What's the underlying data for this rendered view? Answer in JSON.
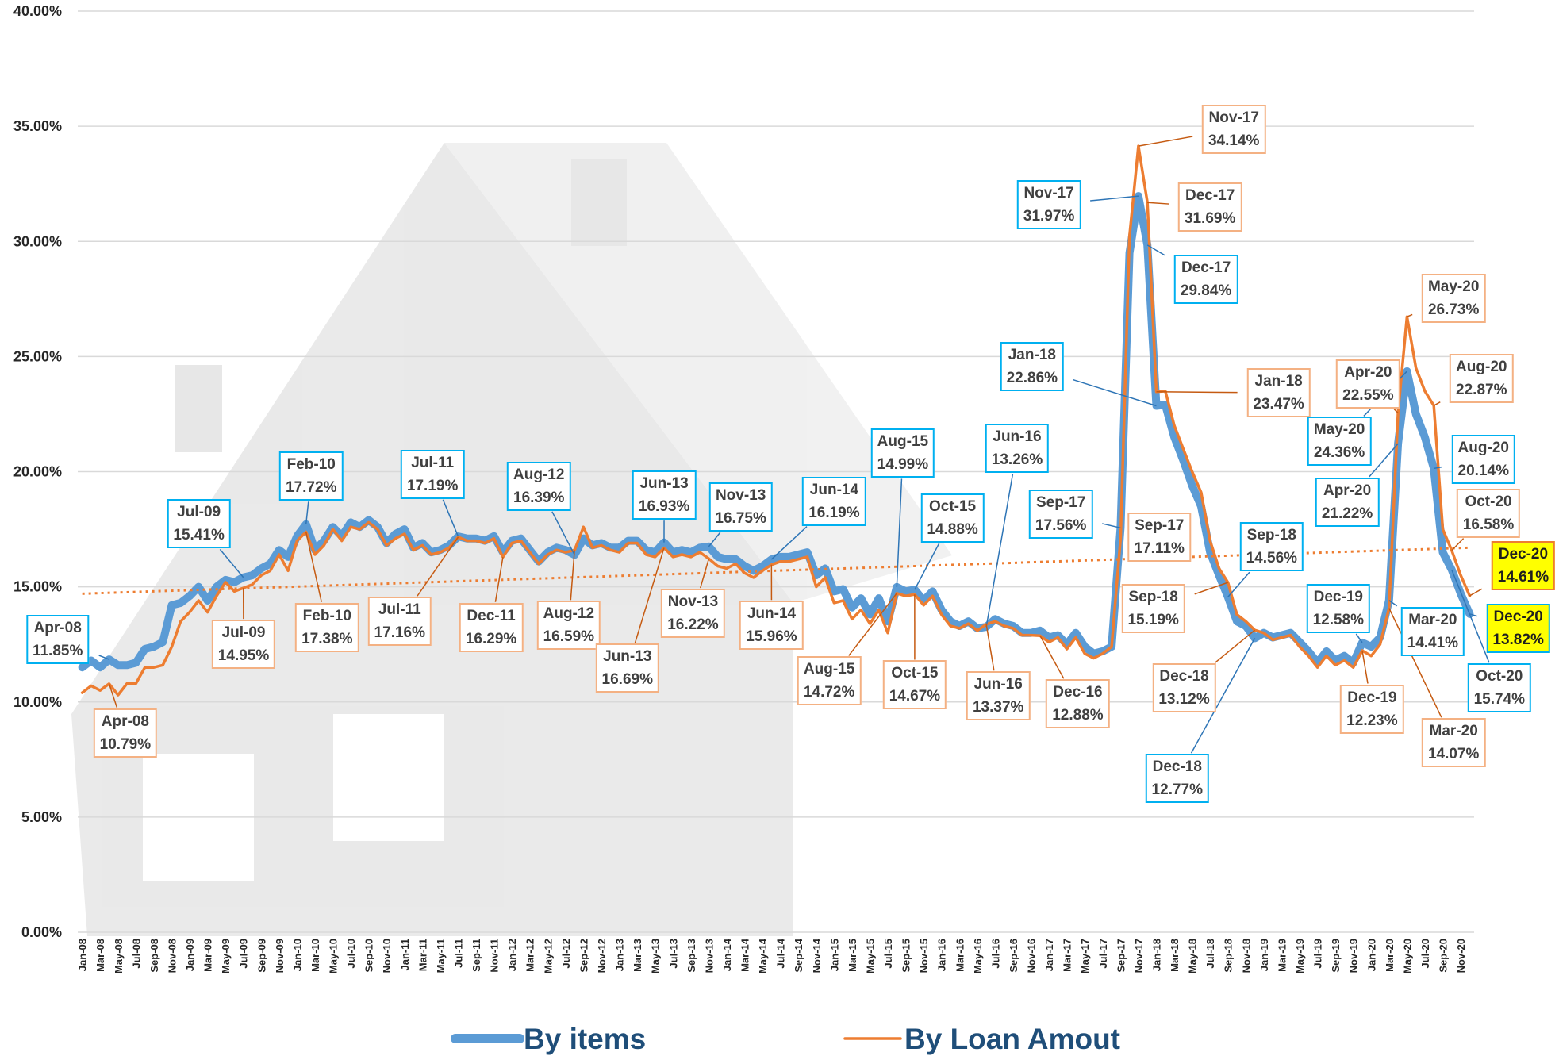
{
  "chart_data": {
    "type": "line",
    "categories": [
      "Jan-08",
      null,
      "Mar-08",
      null,
      "May-08",
      null,
      "Jul-08",
      null,
      "Sep-08",
      null,
      "Nov-08",
      null,
      "Jan-09",
      null,
      "Mar-09",
      null,
      "May-09",
      null,
      "Jul-09",
      null,
      "Sep-09",
      null,
      "Nov-09",
      null,
      "Jan-10",
      null,
      "Mar-10",
      null,
      "May-10",
      null,
      "Jul-10",
      null,
      "Sep-10",
      null,
      "Nov-10",
      null,
      "Jan-11",
      null,
      "Mar-11",
      null,
      "May-11",
      null,
      "Jul-11",
      null,
      "Sep-11",
      null,
      "Nov-11",
      null,
      "Jan-12",
      null,
      "Mar-12",
      null,
      "May-12",
      null,
      "Jul-12",
      null,
      "Sep-12",
      null,
      "Nov-12",
      null,
      "Jan-13",
      null,
      "Mar-13",
      null,
      "May-13",
      null,
      "Jul-13",
      null,
      "Sep-13",
      null,
      "Nov-13",
      null,
      "Jan-14",
      null,
      "Mar-14",
      null,
      "May-14",
      null,
      "Jul-14",
      null,
      "Sep-14",
      null,
      "Nov-14",
      null,
      "Jan-15",
      null,
      "Mar-15",
      null,
      "May-15",
      null,
      "Jul-15",
      null,
      "Sep-15",
      null,
      "Nov-15",
      null,
      "Jan-16",
      null,
      "Mar-16",
      null,
      "May-16",
      null,
      "Jul-16",
      null,
      "Sep-16",
      null,
      "Nov-16",
      null,
      "Jan-17",
      null,
      "Mar-17",
      null,
      "May-17",
      null,
      "Jul-17",
      null,
      "Sep-17",
      null,
      "Nov-17",
      null,
      "Jan-18",
      null,
      "Mar-18",
      null,
      "May-18",
      null,
      "Jul-18",
      null,
      "Sep-18",
      null,
      "Nov-18",
      null,
      "Jan-19",
      null,
      "Mar-19",
      null,
      "May-19",
      null,
      "Jul-19",
      null,
      "Sep-19",
      null,
      "Nov-19",
      null,
      "Jan-20",
      null,
      "Mar-20",
      null,
      "May-20",
      null,
      "Jul-20",
      null,
      "Sep-20",
      null,
      "Nov-20",
      null
    ],
    "series": [
      {
        "name": "By items",
        "color": "#5b9bd5",
        "values": [
          11.5,
          11.8,
          11.5,
          11.85,
          11.6,
          11.6,
          11.7,
          12.3,
          12.4,
          12.6,
          14.2,
          14.3,
          14.6,
          15.0,
          14.4,
          15.0,
          15.3,
          15.2,
          15.41,
          15.5,
          15.8,
          16.0,
          16.6,
          16.3,
          17.2,
          17.72,
          16.6,
          17.0,
          17.6,
          17.2,
          17.8,
          17.6,
          17.9,
          17.6,
          16.9,
          17.3,
          17.5,
          16.7,
          16.9,
          16.5,
          16.6,
          16.8,
          17.19,
          17.1,
          17.1,
          17.0,
          17.2,
          16.5,
          17.0,
          17.1,
          16.6,
          16.1,
          16.5,
          16.7,
          16.6,
          16.39,
          17.1,
          16.8,
          16.9,
          16.7,
          16.7,
          17.0,
          17.0,
          16.6,
          16.5,
          16.93,
          16.5,
          16.6,
          16.5,
          16.7,
          16.75,
          16.3,
          16.2,
          16.2,
          15.9,
          15.7,
          15.9,
          16.19,
          16.3,
          16.3,
          16.4,
          16.5,
          15.5,
          15.8,
          14.8,
          14.9,
          14.1,
          14.5,
          13.8,
          14.5,
          13.5,
          14.99,
          14.8,
          14.88,
          14.4,
          14.8,
          14.0,
          13.5,
          13.3,
          13.5,
          13.2,
          13.26,
          13.6,
          13.4,
          13.3,
          13.0,
          13.0,
          13.1,
          12.8,
          12.9,
          12.5,
          13.0,
          12.4,
          12.1,
          12.2,
          12.4,
          17.56,
          29.5,
          31.97,
          29.84,
          22.86,
          22.9,
          21.5,
          20.5,
          19.4,
          18.5,
          16.5,
          15.5,
          14.56,
          13.5,
          13.3,
          12.77,
          13.0,
          12.8,
          12.9,
          13.0,
          12.6,
          12.2,
          11.7,
          12.2,
          11.8,
          12.0,
          11.7,
          12.58,
          12.4,
          12.8,
          14.41,
          21.22,
          24.36,
          22.5,
          21.5,
          20.14,
          16.5,
          15.74,
          14.7,
          13.82
        ],
        "value_labels": [
          null,
          null,
          null,
          "Apr-08\n11.85%",
          null,
          null,
          null,
          null,
          null,
          null,
          null,
          null,
          null,
          null,
          null,
          null,
          null,
          null,
          "Jul-09\n15.41%",
          null,
          null,
          null,
          null,
          null,
          null,
          "Feb-10\n17.72%",
          null,
          null,
          null,
          null,
          null,
          null,
          null,
          null,
          null,
          null,
          null,
          null,
          null,
          null,
          null,
          null,
          "Jul-11\n17.19%",
          null,
          null,
          null,
          null,
          null,
          null,
          null,
          null,
          null,
          null,
          null,
          null,
          "Aug-12\n16.39%",
          null,
          null,
          null,
          null,
          null,
          null,
          null,
          null,
          null,
          "Jun-13\n16.93%",
          null,
          null,
          null,
          null,
          "Nov-13\n16.75%",
          null,
          null,
          null,
          null,
          null,
          null,
          "Jun-14\n16.19%",
          null,
          null,
          null,
          null,
          null,
          null,
          null,
          null,
          null,
          null,
          null,
          null,
          null,
          "Aug-15\n14.99%",
          null,
          "Oct-15\n14.88%",
          null,
          null,
          null,
          null,
          null,
          null,
          null,
          "Jun-16\n13.26%",
          null,
          null,
          null,
          null,
          null,
          null,
          null,
          null,
          null,
          null,
          null,
          null,
          null,
          null,
          "Sep-17\n17.56%",
          null,
          "Nov-17\n31.97%",
          "Dec-17\n29.84%",
          "Jan-18\n22.86%",
          null,
          null,
          null,
          null,
          null,
          null,
          null,
          "Sep-18\n14.56%",
          null,
          null,
          "Dec-18\n12.77%",
          null,
          null,
          null,
          null,
          null,
          null,
          null,
          null,
          null,
          null,
          null,
          "Dec-19\n12.58%",
          null,
          null,
          "Mar-20\n14.41%",
          "Apr-20\n21.22%",
          "May-20\n24.36%",
          null,
          null,
          "Aug-20\n20.14%",
          null,
          "Oct-20\n15.74%",
          null,
          "Dec-20\n13.82%"
        ]
      },
      {
        "name": "By Loan Amout",
        "color": "#ed7d31",
        "values": [
          10.4,
          10.7,
          10.5,
          10.79,
          10.3,
          10.8,
          10.8,
          11.5,
          11.5,
          11.6,
          12.4,
          13.5,
          13.9,
          14.4,
          13.9,
          14.6,
          15.2,
          14.8,
          14.95,
          15.1,
          15.5,
          15.7,
          16.4,
          15.7,
          17.0,
          17.38,
          16.4,
          16.8,
          17.5,
          17.0,
          17.6,
          17.5,
          17.8,
          17.5,
          16.8,
          17.1,
          17.3,
          16.6,
          16.8,
          16.4,
          16.5,
          16.7,
          17.16,
          17.0,
          17.0,
          16.9,
          17.1,
          16.29,
          16.9,
          17.0,
          16.5,
          16.0,
          16.4,
          16.6,
          16.5,
          16.59,
          17.6,
          16.7,
          16.8,
          16.6,
          16.5,
          16.9,
          16.9,
          16.4,
          16.3,
          16.69,
          16.3,
          16.4,
          16.3,
          16.5,
          16.22,
          15.9,
          15.8,
          16.0,
          15.6,
          15.4,
          15.7,
          15.96,
          16.1,
          16.1,
          16.2,
          16.3,
          15.0,
          15.4,
          14.3,
          14.4,
          13.6,
          14.0,
          13.4,
          14.0,
          13.0,
          14.72,
          14.6,
          14.67,
          14.2,
          14.6,
          13.8,
          13.3,
          13.2,
          13.4,
          13.1,
          13.37,
          13.5,
          13.3,
          13.2,
          12.9,
          12.9,
          12.88,
          12.6,
          12.8,
          12.3,
          12.8,
          12.1,
          11.9,
          12.1,
          12.4,
          17.11,
          30.2,
          34.14,
          31.69,
          23.47,
          23.5,
          22.0,
          21.0,
          20.0,
          19.1,
          17.0,
          15.8,
          15.19,
          13.8,
          13.5,
          13.12,
          13.0,
          12.7,
          12.8,
          12.9,
          12.4,
          12.0,
          11.5,
          12.0,
          11.6,
          11.8,
          11.5,
          12.23,
          12.0,
          12.5,
          14.07,
          22.55,
          26.73,
          24.5,
          23.5,
          22.87,
          17.5,
          16.58,
          15.5,
          14.61
        ],
        "value_labels": [
          null,
          null,
          null,
          "Apr-08\n10.79%",
          null,
          null,
          null,
          null,
          null,
          null,
          null,
          null,
          null,
          null,
          null,
          null,
          null,
          null,
          "Jul-09\n14.95%",
          null,
          null,
          null,
          null,
          null,
          null,
          "Feb-10\n17.38%",
          null,
          null,
          null,
          null,
          null,
          null,
          null,
          null,
          null,
          null,
          null,
          null,
          null,
          null,
          null,
          null,
          "Jul-11\n17.16%",
          null,
          null,
          null,
          null,
          "Dec-11\n16.29%",
          null,
          null,
          null,
          null,
          null,
          null,
          null,
          "Aug-12\n16.59%",
          null,
          null,
          null,
          null,
          null,
          null,
          null,
          null,
          null,
          "Jun-13\n16.69%",
          null,
          null,
          null,
          null,
          "Nov-13\n16.22%",
          null,
          null,
          null,
          null,
          null,
          null,
          "Jun-14\n15.96%",
          null,
          null,
          null,
          null,
          null,
          null,
          null,
          null,
          null,
          null,
          null,
          null,
          null,
          "Aug-15\n14.72%",
          null,
          "Oct-15\n14.67%",
          null,
          null,
          null,
          null,
          null,
          null,
          null,
          "Jun-16\n13.37%",
          null,
          null,
          null,
          null,
          null,
          "Dec-16\n12.88%",
          null,
          null,
          null,
          null,
          null,
          null,
          null,
          null,
          "Sep-17\n17.11%",
          null,
          "Nov-17\n34.14%",
          "Dec-17\n31.69%",
          "Jan-18\n23.47%",
          null,
          null,
          null,
          null,
          null,
          null,
          null,
          "Sep-18\n15.19%",
          null,
          null,
          "Dec-18\n13.12%",
          null,
          null,
          null,
          null,
          null,
          null,
          null,
          null,
          null,
          null,
          null,
          "Dec-19\n12.23%",
          null,
          null,
          "Mar-20\n14.07%",
          "Apr-20\n22.55%",
          "May-20\n26.73%",
          null,
          null,
          "Aug-20\n22.87%",
          null,
          "Oct-20\n16.58%",
          null,
          "Dec-20\n14.61%"
        ]
      }
    ],
    "trendline": {
      "color": "#ed7d31",
      "values": [
        14.7,
        16.7
      ]
    },
    "ylim": [
      0,
      40
    ],
    "yticks": [
      {
        "value": 0,
        "label": "0.00%"
      },
      {
        "value": 5,
        "label": "5.00%"
      },
      {
        "value": 10,
        "label": "10.00%"
      },
      {
        "value": 15,
        "label": "15.00%"
      },
      {
        "value": 20,
        "label": "20.00%"
      },
      {
        "value": 25,
        "label": "25.00%"
      },
      {
        "value": 30,
        "label": "30.00%"
      },
      {
        "value": 35,
        "label": "35.00%"
      },
      {
        "value": 40,
        "label": "40.00%"
      }
    ],
    "grid": true
  }
}
